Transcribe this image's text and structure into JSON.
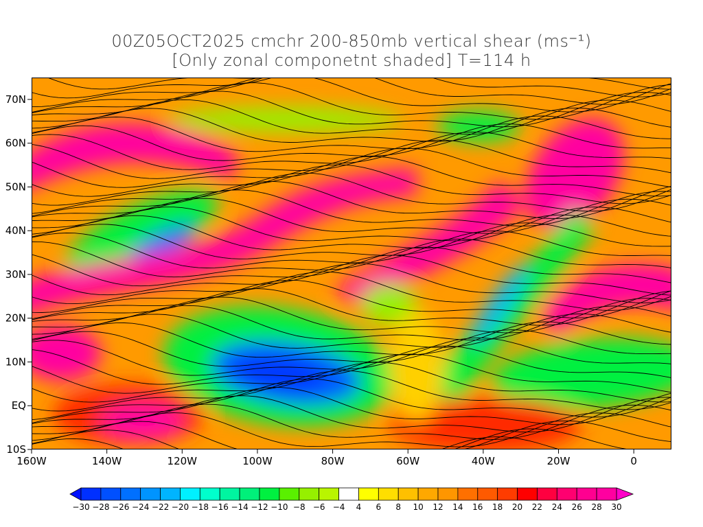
{
  "chart_data": {
    "type": "heatmap",
    "title": "00Z05OCT2025 cmchr 200-850mb vertical shear (ms⁻¹)",
    "subtitle": "[Only zonal componetnt shaded] T=114 h",
    "variable": "zonal vertical wind shear 200-850mb",
    "units": "ms-1",
    "lon_range": [
      -160,
      10
    ],
    "lat_range": [
      -10,
      75
    ],
    "lat_ticks": [
      {
        "value": 70,
        "label": "70N"
      },
      {
        "value": 60,
        "label": "60N"
      },
      {
        "value": 50,
        "label": "50N"
      },
      {
        "value": 40,
        "label": "40N"
      },
      {
        "value": 30,
        "label": "30N"
      },
      {
        "value": 20,
        "label": "20N"
      },
      {
        "value": 10,
        "label": "10N"
      },
      {
        "value": 0,
        "label": "EQ"
      },
      {
        "value": -10,
        "label": "10S"
      }
    ],
    "lon_ticks": [
      {
        "value": -160,
        "label": "160W"
      },
      {
        "value": -140,
        "label": "140W"
      },
      {
        "value": -120,
        "label": "120W"
      },
      {
        "value": -100,
        "label": "100W"
      },
      {
        "value": -80,
        "label": "80W"
      },
      {
        "value": -60,
        "label": "60W"
      },
      {
        "value": -40,
        "label": "40W"
      },
      {
        "value": -20,
        "label": "20W"
      },
      {
        "value": 0,
        "label": "0"
      }
    ],
    "colorbar": {
      "labels": [
        "-30",
        "-28",
        "-26",
        "-24",
        "-22",
        "-20",
        "-18",
        "-16",
        "-14",
        "-12",
        "-10",
        "-8",
        "-6",
        "-4",
        "4",
        "6",
        "8",
        "10",
        "12",
        "14",
        "16",
        "18",
        "20",
        "22",
        "24",
        "26",
        "28",
        "30"
      ],
      "colors": [
        "#0030ff",
        "#0050ff",
        "#0070ff",
        "#0094ff",
        "#00b4ff",
        "#00f0ff",
        "#00ffcc",
        "#00f5a0",
        "#00f07a",
        "#00f040",
        "#5af000",
        "#96f000",
        "#b9f500",
        "#ffffff",
        "#ffff00",
        "#ffde00",
        "#ffc000",
        "#ffa800",
        "#ff9600",
        "#ff7000",
        "#ff5a00",
        "#ff3c00",
        "#ff0000",
        "#ff0040",
        "#ff0070",
        "#ff0090",
        "#ff00a0"
      ],
      "low_arrow_color": "#0010ff",
      "high_arrow_color": "#ff00c8"
    }
  }
}
